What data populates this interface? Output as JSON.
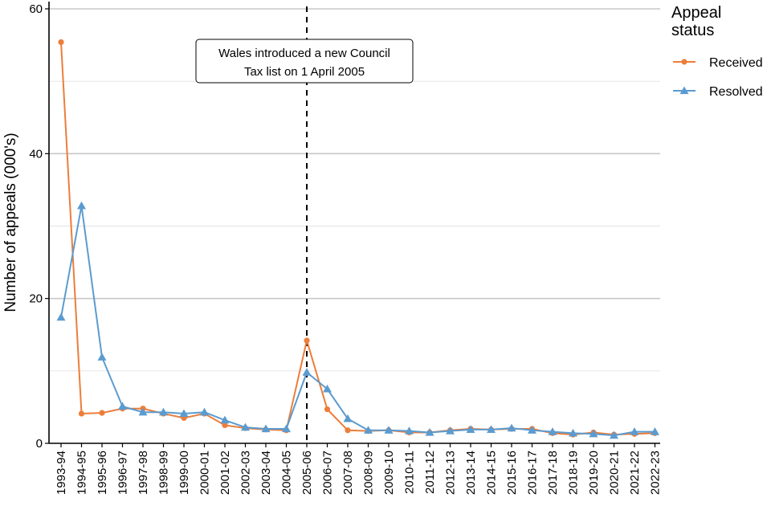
{
  "chart_data": {
    "type": "line",
    "xlabel": "",
    "ylabel": "Number of appeals (000's)",
    "ylim": [
      0,
      60
    ],
    "yticks": [
      "0",
      "20",
      "40",
      "60"
    ],
    "grid": true,
    "legend_position": "right",
    "legend_title_lines": [
      "Appeal",
      "status"
    ],
    "categories": [
      "1993-94",
      "1994-95",
      "1995-96",
      "1996-97",
      "1997-98",
      "1998-99",
      "1999-00",
      "2000-01",
      "2001-02",
      "2002-03",
      "2003-04",
      "2004-05",
      "2005-06",
      "2006-07",
      "2007-08",
      "2008-09",
      "2009-10",
      "2010-11",
      "2011-12",
      "2012-13",
      "2013-14",
      "2014-15",
      "2015-16",
      "2016-17",
      "2017-18",
      "2018-19",
      "2019-20",
      "2020-21",
      "2021-22",
      "2022-23"
    ],
    "series": [
      {
        "name": "Received",
        "color": "#ed7d3a",
        "marker": "circle",
        "values": [
          55.4,
          4.1,
          4.2,
          4.8,
          4.8,
          4.1,
          3.5,
          4.1,
          2.5,
          2.1,
          1.9,
          1.8,
          14.2,
          4.7,
          1.8,
          1.7,
          1.8,
          1.5,
          1.5,
          1.8,
          2.0,
          1.9,
          2.0,
          2.0,
          1.4,
          1.2,
          1.5,
          1.2,
          1.3,
          1.4
        ]
      },
      {
        "name": "Resolved",
        "color": "#5b9bcf",
        "marker": "triangle",
        "values": [
          17.4,
          32.8,
          11.9,
          5.1,
          4.3,
          4.3,
          4.1,
          4.3,
          3.2,
          2.2,
          2.0,
          2.0,
          9.8,
          7.5,
          3.4,
          1.8,
          1.8,
          1.7,
          1.5,
          1.7,
          1.9,
          1.9,
          2.1,
          1.8,
          1.6,
          1.4,
          1.3,
          1.1,
          1.6,
          1.6
        ]
      }
    ],
    "reference_line": {
      "category": "2005-06",
      "style": "dashed"
    },
    "annotation": {
      "lines": [
        "Wales introduced a new Council",
        "Tax list on 1 April 2005"
      ]
    }
  }
}
